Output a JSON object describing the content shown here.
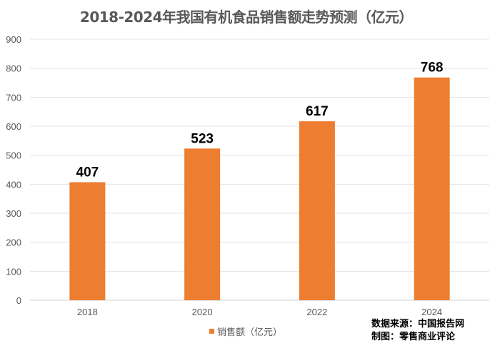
{
  "chart_data": {
    "type": "bar",
    "title": "2018-2024年我国有机食品销售额走势预测（亿元）",
    "categories": [
      "2018",
      "2020",
      "2022",
      "2024"
    ],
    "series": [
      {
        "name": "销售额（亿元）",
        "values": [
          407,
          523,
          617,
          768
        ],
        "color": "#ED7D31"
      }
    ],
    "ylim": [
      0,
      900
    ],
    "yticks": [
      0,
      100,
      200,
      300,
      400,
      500,
      600,
      700,
      800,
      900
    ],
    "grid": true,
    "legend_position": "bottom",
    "data_labels": true
  },
  "source": {
    "line1": "数据来源：中国报告网",
    "line2": "制图：零售商业评论"
  }
}
